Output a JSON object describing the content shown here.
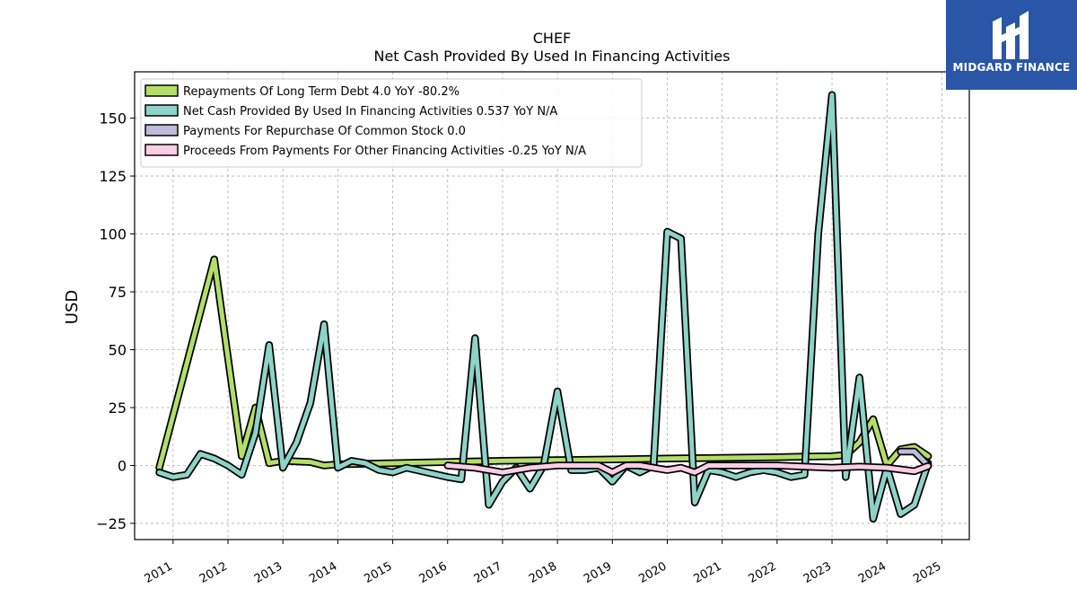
{
  "brand": {
    "name": "MIDGARD FINANCE",
    "color": "#2a56a8"
  },
  "chart_data": {
    "type": "line",
    "title": "CHEF",
    "subtitle": "Net Cash Provided By Used In Financing Activities",
    "ylabel": "USD",
    "xlabel": "",
    "ylim": [
      -32,
      170
    ],
    "xlim": [
      2010.3,
      2025.5
    ],
    "yticks": [
      -25,
      0,
      25,
      50,
      75,
      100,
      125,
      150
    ],
    "xticks": [
      "2011",
      "2012",
      "2013",
      "2014",
      "2015",
      "2016",
      "2017",
      "2018",
      "2019",
      "2020",
      "2021",
      "2022",
      "2023",
      "2024",
      "2025"
    ],
    "grid": true,
    "legend_position": "top-left",
    "series": [
      {
        "name": "Repayments Of Long Term Debt",
        "legend_label": "Repayments Of Long Term Debt  4.0 YoY -80.2%",
        "color": "#b3de69",
        "points": [
          [
            2010.75,
            -1
          ],
          [
            2011.75,
            89
          ],
          [
            2012.25,
            4
          ],
          [
            2012.5,
            25
          ],
          [
            2012.75,
            1
          ],
          [
            2013.0,
            2
          ],
          [
            2013.5,
            1.5
          ],
          [
            2013.75,
            0
          ],
          [
            2014.0,
            0.5
          ],
          [
            2016.0,
            1.5
          ],
          [
            2017.0,
            2
          ],
          [
            2018.0,
            2.3
          ],
          [
            2019.0,
            2.6
          ],
          [
            2020.0,
            3
          ],
          [
            2021.0,
            3.3
          ],
          [
            2022.0,
            3.6
          ],
          [
            2023.0,
            4
          ],
          [
            2023.25,
            4.5
          ],
          [
            2023.5,
            10
          ],
          [
            2023.75,
            20
          ],
          [
            2024.0,
            0
          ],
          [
            2024.25,
            7
          ],
          [
            2024.5,
            8
          ],
          [
            2024.75,
            4
          ]
        ]
      },
      {
        "name": "Net Cash Provided By Used In Financing Activities",
        "legend_label": "Net Cash Provided By Used In Financing Activities  0.537 YoY N/A",
        "color": "#8dd3c7",
        "points": [
          [
            2010.75,
            -3
          ],
          [
            2011.0,
            -5
          ],
          [
            2011.25,
            -4
          ],
          [
            2011.5,
            5
          ],
          [
            2011.75,
            3
          ],
          [
            2012.0,
            0
          ],
          [
            2012.25,
            -4
          ],
          [
            2012.5,
            14
          ],
          [
            2012.75,
            52
          ],
          [
            2013.0,
            -1
          ],
          [
            2013.25,
            10
          ],
          [
            2013.5,
            27
          ],
          [
            2013.75,
            61
          ],
          [
            2014.0,
            -1
          ],
          [
            2014.25,
            2
          ],
          [
            2014.5,
            1
          ],
          [
            2014.75,
            -2
          ],
          [
            2015.0,
            -3
          ],
          [
            2015.25,
            -1
          ],
          [
            2016.0,
            -5
          ],
          [
            2016.25,
            -6
          ],
          [
            2016.5,
            55
          ],
          [
            2016.75,
            -17
          ],
          [
            2017.0,
            -7
          ],
          [
            2017.25,
            -1
          ],
          [
            2017.5,
            -10
          ],
          [
            2017.75,
            0
          ],
          [
            2018.0,
            32
          ],
          [
            2018.25,
            -2
          ],
          [
            2018.5,
            -2
          ],
          [
            2018.75,
            -1
          ],
          [
            2019.0,
            -7
          ],
          [
            2019.25,
            0
          ],
          [
            2019.5,
            -3
          ],
          [
            2019.75,
            0
          ],
          [
            2020.0,
            101
          ],
          [
            2020.25,
            98
          ],
          [
            2020.5,
            -16
          ],
          [
            2020.75,
            -2
          ],
          [
            2021.0,
            -3
          ],
          [
            2021.25,
            -5
          ],
          [
            2021.5,
            -3
          ],
          [
            2021.75,
            -2
          ],
          [
            2022.0,
            -3
          ],
          [
            2022.25,
            -5
          ],
          [
            2022.5,
            -4
          ],
          [
            2022.75,
            100
          ],
          [
            2023.0,
            160
          ],
          [
            2023.25,
            -5
          ],
          [
            2023.5,
            38
          ],
          [
            2023.75,
            -23
          ],
          [
            2024.0,
            -1
          ],
          [
            2024.25,
            -21
          ],
          [
            2024.5,
            -17
          ],
          [
            2024.75,
            1
          ]
        ]
      },
      {
        "name": "Payments For Repurchase Of Common Stock",
        "legend_label": "Payments For Repurchase Of Common Stock  0.0",
        "color": "#bebada",
        "points": [
          [
            2024.25,
            6
          ],
          [
            2024.5,
            6
          ],
          [
            2024.75,
            0
          ]
        ]
      },
      {
        "name": "Proceeds From Payments For Other Financing Activities",
        "legend_label": "Proceeds From Payments For Other Financing Activities  -0.25 YoY N/A",
        "color": "#fccde5",
        "points": [
          [
            2016.0,
            0
          ],
          [
            2016.5,
            -1
          ],
          [
            2017.0,
            -3
          ],
          [
            2017.5,
            -1
          ],
          [
            2018.0,
            0
          ],
          [
            2018.5,
            0
          ],
          [
            2018.75,
            0
          ],
          [
            2019.0,
            -3
          ],
          [
            2019.25,
            0
          ],
          [
            2019.5,
            0
          ],
          [
            2020.0,
            -2
          ],
          [
            2020.25,
            -1
          ],
          [
            2020.5,
            -3
          ],
          [
            2020.75,
            0
          ],
          [
            2021.0,
            0
          ],
          [
            2022.0,
            0
          ],
          [
            2023.0,
            -1
          ],
          [
            2023.5,
            -0.5
          ],
          [
            2024.0,
            -1
          ],
          [
            2024.5,
            -2.5
          ],
          [
            2024.75,
            -0.25
          ]
        ]
      }
    ]
  }
}
